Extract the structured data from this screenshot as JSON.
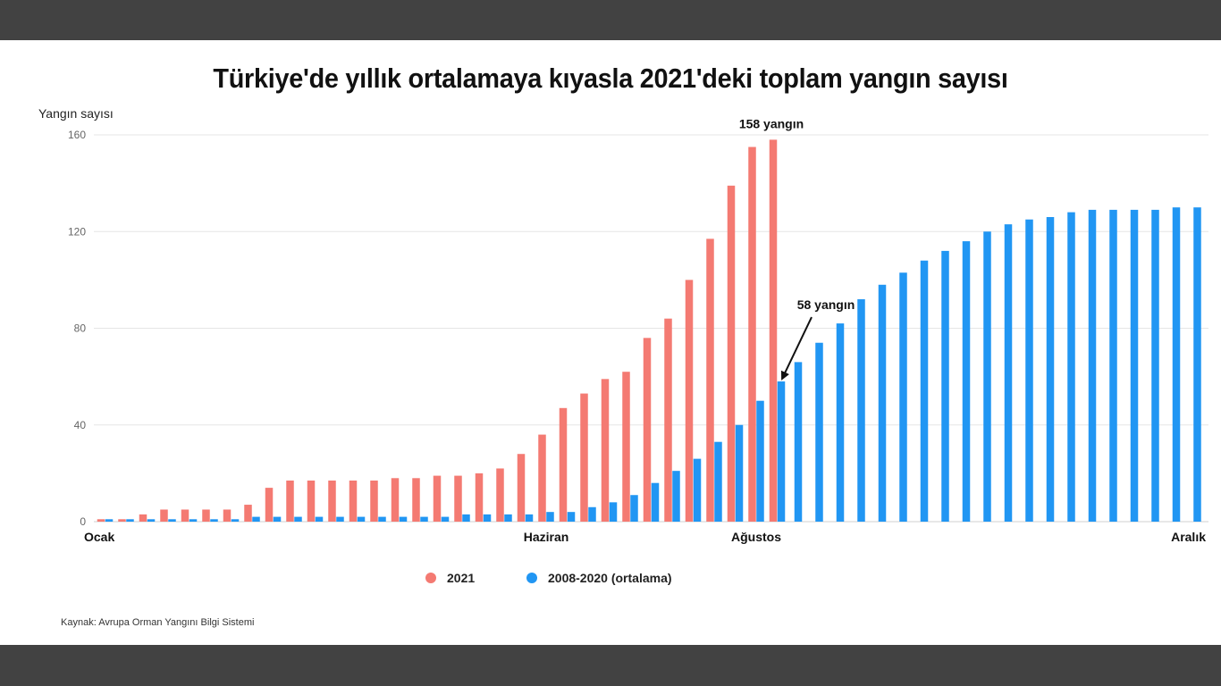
{
  "page": {
    "title": "Türkiye'de yıllık ortalamaya kıyasla 2021'deki toplam yangın sayısı",
    "source": "Kaynak: Avrupa Orman Yangını Bilgi Sistemi"
  },
  "colors": {
    "series_2021": "#f47a72",
    "series_avg": "#2196f3",
    "header_band": "#424242",
    "grid": "#e6e6e6"
  },
  "chart_data": {
    "type": "bar",
    "ylabel": "Yangın sayısı",
    "ylim": [
      0,
      160
    ],
    "yticks": [
      0,
      40,
      80,
      120,
      160
    ],
    "x_labels": [
      {
        "label": "Ocak",
        "index": 0
      },
      {
        "label": "Haziran",
        "index": 21
      },
      {
        "label": "Ağustos",
        "index": 31
      },
      {
        "label": "Aralık",
        "index": 51
      }
    ],
    "series": [
      {
        "name": "2021",
        "values": [
          1,
          1,
          3,
          5,
          5,
          5,
          5,
          7,
          14,
          17,
          17,
          17,
          17,
          17,
          18,
          18,
          19,
          19,
          20,
          22,
          28,
          36,
          47,
          53,
          59,
          62,
          76,
          84,
          100,
          117,
          139,
          155,
          158
        ]
      },
      {
        "name": "2008-2020 (ortalama)",
        "values": [
          1,
          1,
          1,
          1,
          1,
          1,
          1,
          2,
          2,
          2,
          2,
          2,
          2,
          2,
          2,
          2,
          2,
          3,
          3,
          3,
          3,
          4,
          4,
          6,
          8,
          11,
          16,
          21,
          26,
          33,
          40,
          50,
          58,
          66,
          74,
          82,
          92,
          98,
          103,
          108,
          112,
          116,
          120,
          123,
          125,
          126,
          128,
          129,
          129,
          129,
          129,
          130,
          130
        ]
      }
    ],
    "annotations": [
      {
        "text": "158 yangın",
        "series": "2021",
        "index": 32
      },
      {
        "text": "58 yangın",
        "series": "2008-2020 (ortalama)",
        "index": 32
      }
    ]
  }
}
